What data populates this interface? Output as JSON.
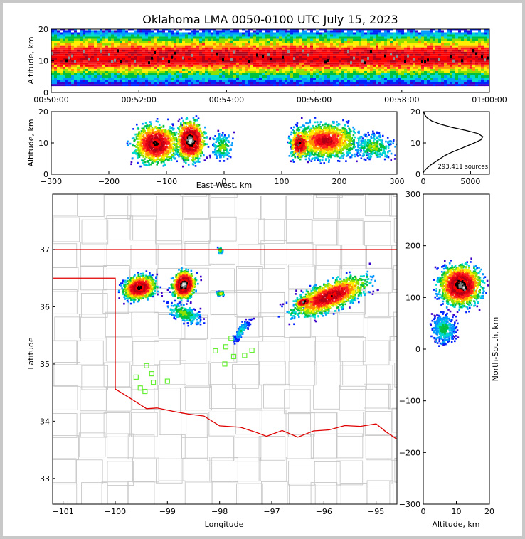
{
  "chart_data": {
    "type": "heatmap",
    "title": "Oklahoma LMA 0050-0100 UTC July 15, 2023",
    "panels": {
      "time_height": {
        "type": "heatmap",
        "ylabel": "Altitude, km",
        "xlim": [
          "00:50:00",
          "01:00:00"
        ],
        "xticks": [
          "00:50:00",
          "00:52:00",
          "00:54:00",
          "00:56:00",
          "00:58:00",
          "01:00:00"
        ],
        "ylim": [
          0,
          20
        ],
        "yticks": [
          "0",
          "10",
          "20"
        ],
        "band_altitude_km": [
          2,
          20
        ],
        "core_altitude_km": [
          7,
          15
        ]
      },
      "ew_height": {
        "type": "heatmap",
        "xlabel": "East-West, km",
        "ylabel": "Altitude, km",
        "xlim": [
          -300,
          300
        ],
        "xticks": [
          "−300",
          "−200",
          "−100",
          "0",
          "100",
          "200",
          "300"
        ],
        "ylim": [
          0,
          20
        ],
        "yticks": [
          "0",
          "10",
          "20"
        ],
        "clusters": [
          {
            "ew_km": [
              -180,
              -40
            ],
            "alt_km": [
              1,
              20
            ],
            "cores_ew_km": [
              -125,
              -60
            ]
          },
          {
            "ew_km": [
              100,
              300
            ],
            "alt_km": [
              2,
              20
            ],
            "cores_ew_km": [
              130,
              190
            ]
          }
        ]
      },
      "altitude_histogram": {
        "type": "line",
        "annotation": "293,411 sources",
        "xlim": [
          0,
          7000
        ],
        "xticks": [
          "0",
          "5000"
        ],
        "ylim": [
          0,
          20
        ],
        "yticks": [
          "0",
          "10",
          "20"
        ],
        "altitude_km": [
          0.5,
          1,
          2,
          3,
          4,
          5,
          6,
          7,
          8,
          9,
          10,
          11,
          12,
          13,
          14,
          15,
          16,
          17,
          18,
          19,
          20
        ],
        "counts": [
          0,
          100,
          400,
          800,
          1300,
          1800,
          2300,
          3000,
          3800,
          4600,
          5400,
          6100,
          6300,
          5800,
          4500,
          3000,
          1800,
          900,
          400,
          150,
          50
        ]
      },
      "plan_view": {
        "type": "heatmap",
        "xlabel": "Longitude",
        "ylabel": "Latitude",
        "xlim": [
          -101.2,
          -94.6
        ],
        "ylim": [
          32.55,
          37.97
        ],
        "xticks": [
          "−101",
          "−100",
          "−99",
          "−98",
          "−97",
          "−96",
          "−95"
        ],
        "yticks": [
          "33",
          "34",
          "35",
          "36",
          "37"
        ],
        "sources": [
          {
            "lon_range": [
              -100.1,
              -98.8
            ],
            "lat_range": [
              35.6,
              37.3
            ]
          },
          {
            "lon_range": [
              -98.8,
              -98.2
            ],
            "lat_range": [
              35.3,
              36.8
            ]
          },
          {
            "lon_range": [
              -98.1,
              -97.6
            ],
            "lat_range": [
              36.1,
              36.4
            ]
          },
          {
            "lon_range": [
              -97.2,
              -94.6
            ],
            "lat_range": [
              35.3,
              37.0
            ]
          }
        ],
        "stations": [
          {
            "lon": -99.4,
            "lat": 34.97
          },
          {
            "lon": -99.6,
            "lat": 34.77
          },
          {
            "lon": -99.3,
            "lat": 34.83
          },
          {
            "lon": -99.27,
            "lat": 34.68
          },
          {
            "lon": -99.52,
            "lat": 34.58
          },
          {
            "lon": -99.43,
            "lat": 34.52
          },
          {
            "lon": -99.0,
            "lat": 34.7
          },
          {
            "lon": -98.08,
            "lat": 35.23
          },
          {
            "lon": -97.88,
            "lat": 35.3
          },
          {
            "lon": -97.73,
            "lat": 35.13
          },
          {
            "lon": -97.52,
            "lat": 35.15
          },
          {
            "lon": -97.38,
            "lat": 35.24
          },
          {
            "lon": -97.9,
            "lat": 35.0
          },
          {
            "lon": -97.78,
            "lat": 35.45
          }
        ]
      },
      "ns_height": {
        "type": "heatmap",
        "xlabel": "Altitude, km",
        "ylabel": "North-South, km",
        "xlim": [
          0,
          20
        ],
        "xticks": [
          "0",
          "10",
          "20"
        ],
        "ylim": [
          -300,
          300
        ],
        "yticks": [
          "−300",
          "−200",
          "−100",
          "0",
          "100",
          "200",
          "300"
        ],
        "clusters": [
          {
            "ns_km": [
              0,
              230
            ],
            "alt_km": [
              0,
              20
            ],
            "core_ns_km": [
              90,
              160
            ]
          }
        ]
      }
    }
  }
}
